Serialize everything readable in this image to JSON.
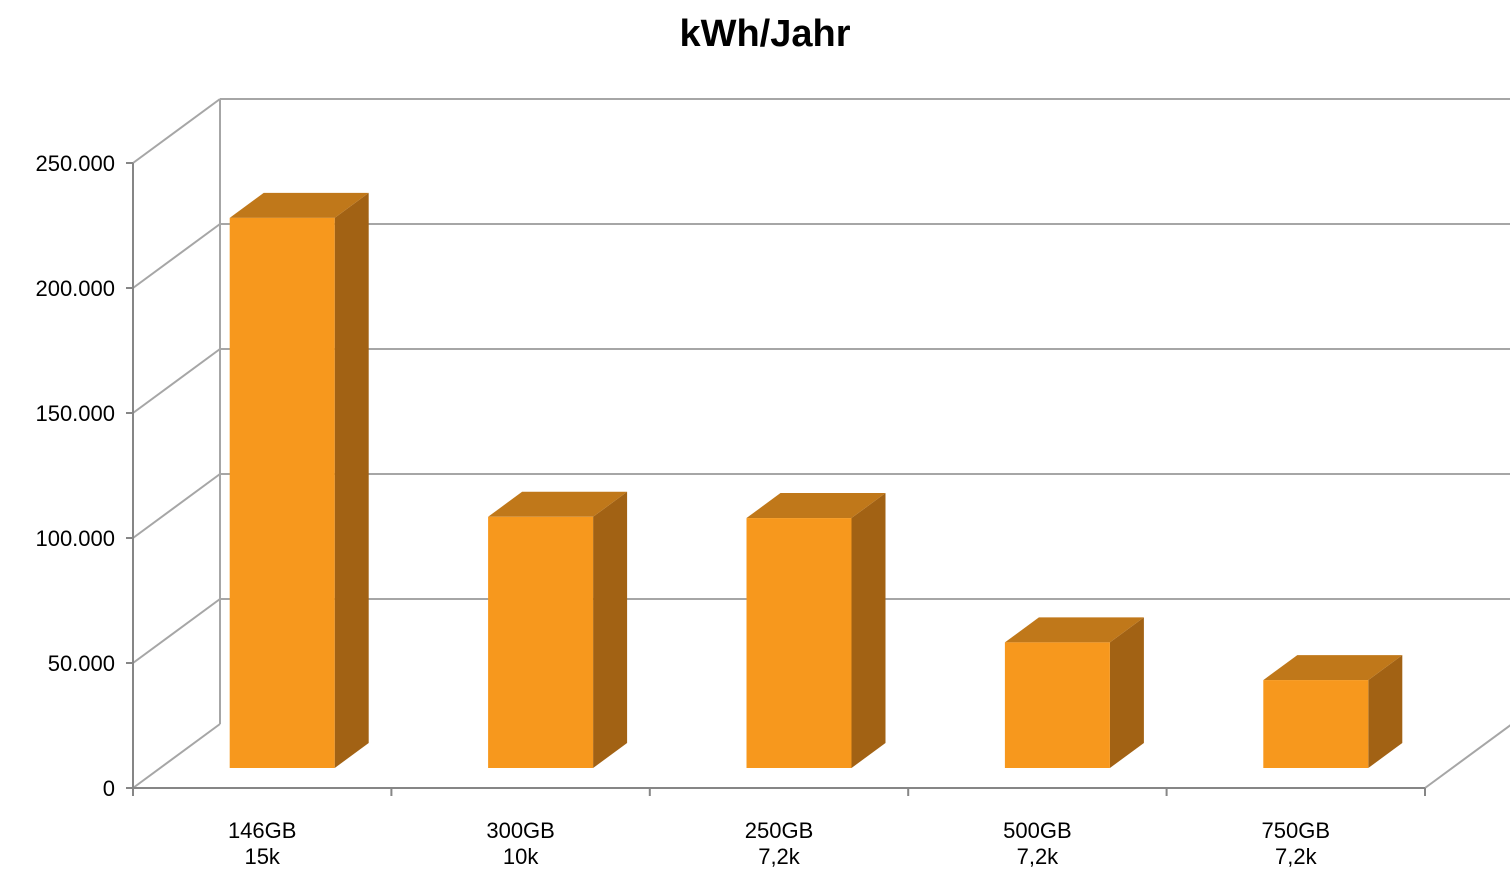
{
  "chart_data": {
    "type": "bar",
    "title": "kWh/Jahr",
    "categories": [
      [
        "146GB",
        "15k"
      ],
      [
        "300GB",
        "10k"
      ],
      [
        "250GB",
        "7,2k"
      ],
      [
        "500GB",
        "7,2k"
      ],
      [
        "750GB",
        "7,2k"
      ]
    ],
    "values": [
      219000,
      100000,
      99500,
      50000,
      35000
    ],
    "ylim": [
      0,
      250000
    ],
    "yticks": [
      0,
      50000,
      100000,
      150000,
      200000,
      250000
    ],
    "ytick_labels": [
      "0",
      "50.000",
      "100.000",
      "150.000",
      "200.000",
      "250.000"
    ],
    "grid": true,
    "three_d": true,
    "colors": {
      "bar_front": "#F7981D",
      "bar_side": "#A26214",
      "bar_top": "#C0781A",
      "grid": "#A6A6A6",
      "axis": "#868686"
    }
  }
}
